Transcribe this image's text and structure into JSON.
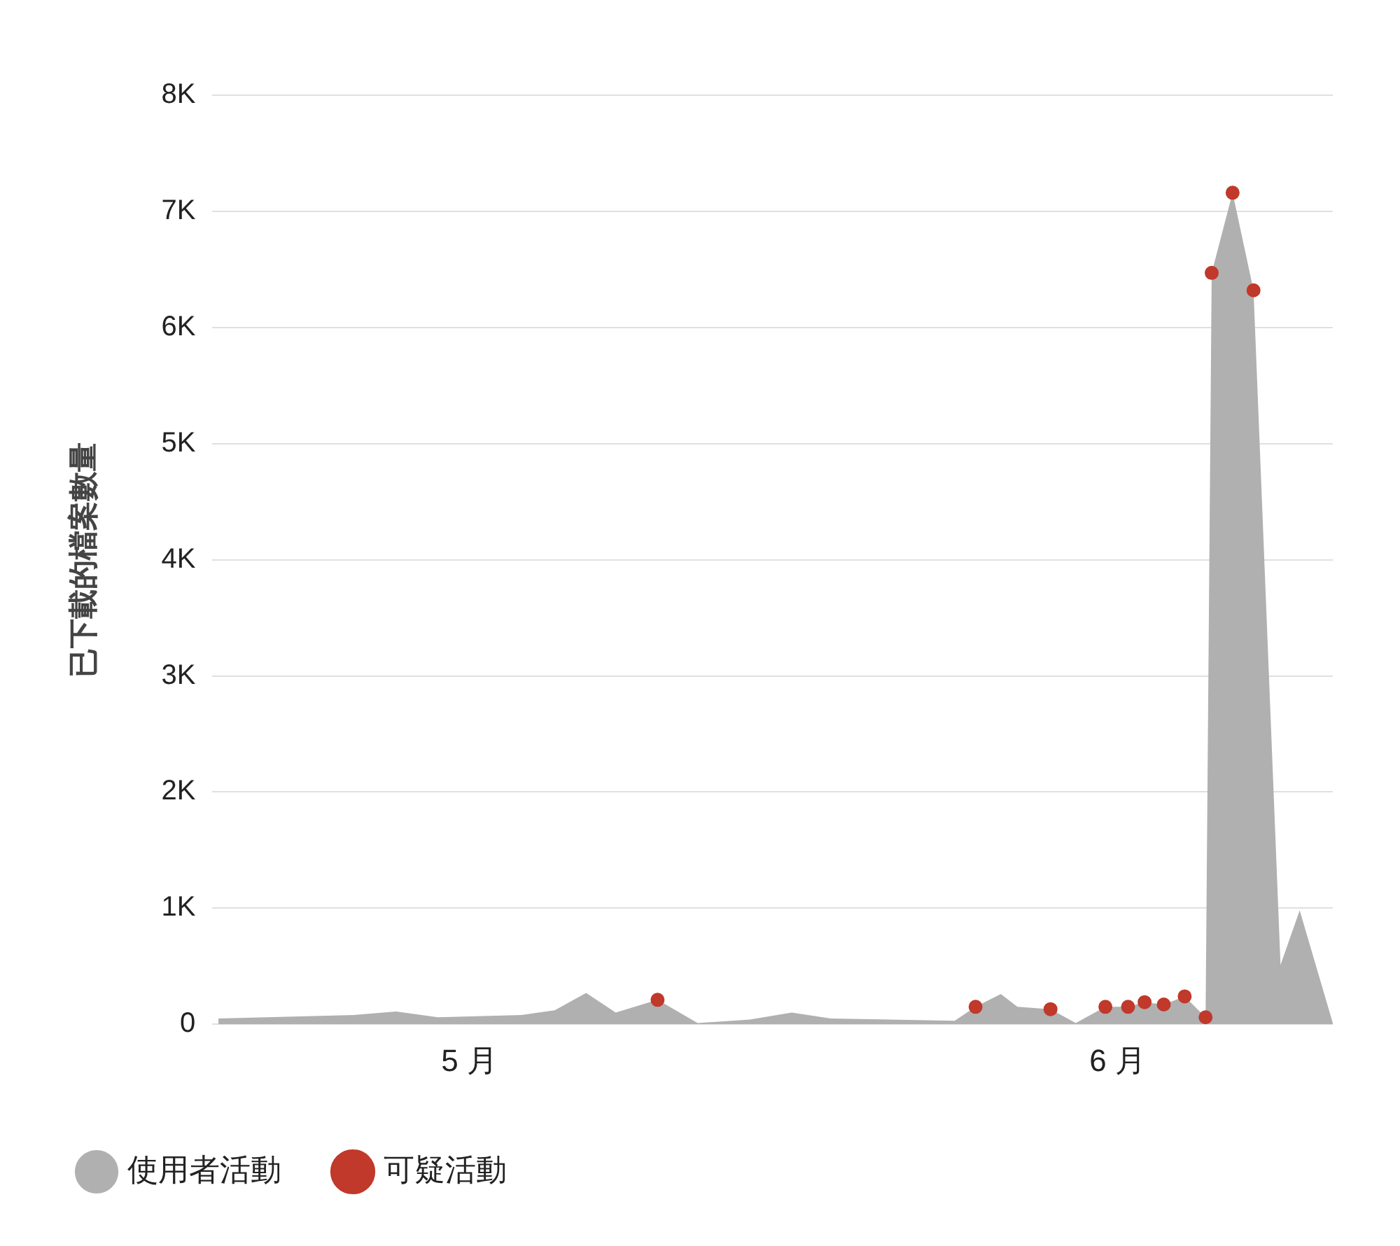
{
  "chart_data": {
    "type": "area",
    "ylabel": "已下載的檔案數量",
    "xlim": [
      "--04-18T17:00",
      "--06-11T07:00"
    ],
    "xticks": [
      {
        "value": "--05-01",
        "label": "5 月"
      },
      {
        "value": "--06-01",
        "label": "6 月"
      }
    ],
    "ylim": [
      0,
      8000
    ],
    "yticks": [
      0,
      {
        "value": 1000,
        "label": "1K"
      },
      {
        "value": 2000,
        "label": "2K"
      },
      {
        "value": 3000,
        "label": "3K"
      },
      {
        "value": 4000,
        "label": "4K"
      },
      {
        "value": 5000,
        "label": "5K"
      },
      {
        "value": 6000,
        "label": "6K"
      },
      {
        "value": 7000,
        "label": "7K"
      },
      {
        "value": 8000,
        "label": "8K"
      }
    ],
    "grid": "y",
    "legend": "bottom left",
    "series": [
      {
        "name": "使用者活動",
        "color": "#b0b0b0",
        "x": [
          "--04-19T00:00",
          "--04-25T12:00",
          "--04-27T12:00",
          "--04-29T12:00",
          "--05-03T12:00",
          "--05-05T02:00",
          "--05-06T14:00",
          "--05-08T00:00",
          "--05-10T00:00",
          "--05-11T22:00",
          "--05-14T10:00",
          "--05-16T10:00",
          "--05-18T07:00",
          "--05-24T05:00",
          "--05-25T05:00",
          "--05-26T10:00",
          "--05-27T05:00",
          "--05-28T19:00",
          "--05-30T00:00",
          "--05-31T10:00",
          "--06-01T12:00",
          "--06-02T07:00",
          "--06-03T05:00",
          "--06-04T05:00",
          "--06-05T05:00",
          "--06-05T12:00",
          "--06-06T12:00",
          "--06-07T12:00",
          "--06-08T19:00",
          "--06-09T17:00",
          "--06-11T07:00"
        ],
        "values": [
          50,
          80,
          110,
          60,
          80,
          120,
          270,
          100,
          210,
          10,
          40,
          100,
          50,
          30,
          150,
          260,
          150,
          130,
          10,
          150,
          150,
          190,
          170,
          240,
          60,
          6470,
          7160,
          6320,
          510,
          980,
          10
        ]
      },
      {
        "name": "可疑活動",
        "type": "scatter",
        "color": "#c0392b",
        "marker": "circle",
        "x": [
          "--05-10T00:00",
          "--05-25T05:00",
          "--05-28T19:00",
          "--05-31T10:00",
          "--06-01T12:00",
          "--06-02T07:00",
          "--06-03T05:00",
          "--06-04T05:00",
          "--06-05T05:00",
          "--06-05T12:00",
          "--06-06T12:00",
          "--06-07T12:00"
        ],
        "values": [
          210,
          150,
          130,
          150,
          150,
          190,
          170,
          240,
          60,
          6470,
          7160,
          6320
        ]
      }
    ]
  }
}
